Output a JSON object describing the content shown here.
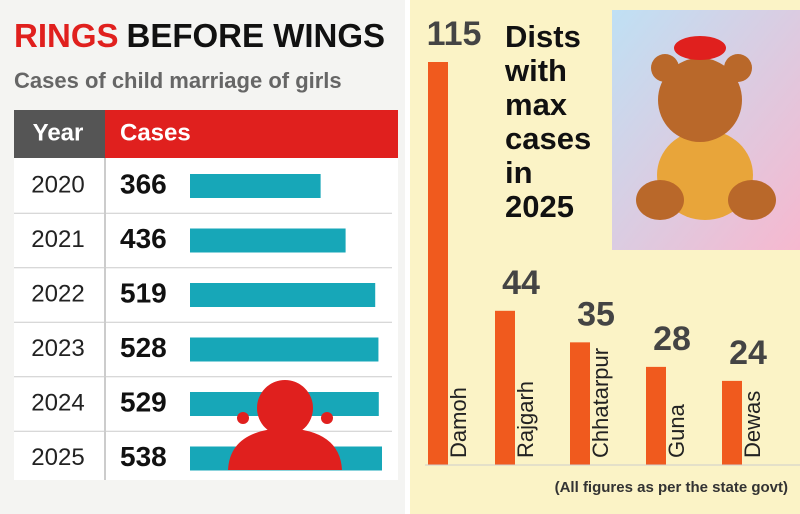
{
  "chart_data": [
    {
      "type": "hbar",
      "title_parts": [
        "RINGS",
        "BEFORE WINGS"
      ],
      "title_colors": [
        "#e0201e",
        "#111111"
      ],
      "subtitle": "Cases of child marriage of girls",
      "column_headers": [
        "Year",
        "Cases"
      ],
      "categories": [
        "2020",
        "2021",
        "2022",
        "2023",
        "2024",
        "2025"
      ],
      "values": [
        366,
        436,
        519,
        528,
        529,
        538
      ],
      "color": "#17a7b8"
    },
    {
      "type": "bar",
      "title": "Dists with max cases in 2025",
      "categories": [
        "Damoh",
        "Rajgarh",
        "Chhatarpur",
        "Guna",
        "Dewas"
      ],
      "values": [
        115,
        44,
        35,
        28,
        24
      ],
      "color": "#f05a1e",
      "note": "(All figures as per the state govt)"
    }
  ]
}
